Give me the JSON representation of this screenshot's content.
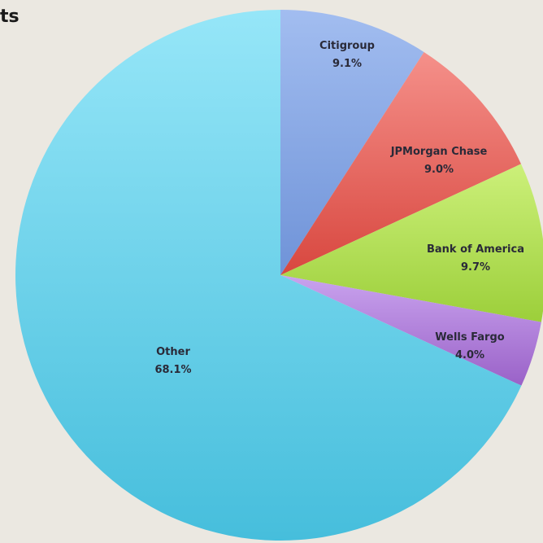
{
  "chart_data": {
    "type": "pie",
    "title": "ts",
    "slices": [
      {
        "name": "Citigroup",
        "value": 9.1,
        "label": "9.1%",
        "color": "#6f93d8",
        "color_light": "#a2bdf0"
      },
      {
        "name": "JPMorgan Chase",
        "value": 9.0,
        "label": "9.0%",
        "color": "#d8473f",
        "color_light": "#f5908a"
      },
      {
        "name": "Bank of America",
        "value": 9.7,
        "label": "9.7%",
        "color": "#9ccf3a",
        "color_light": "#ccf07a"
      },
      {
        "name": "Wells Fargo",
        "value": 4.0,
        "label": "4.0%",
        "color": "#9a62c8",
        "color_light": "#c9a3ee"
      },
      {
        "name": "Other",
        "value": 68.1,
        "label": "68.1%",
        "color": "#46bedc",
        "color_light": "#96e6f8"
      }
    ]
  }
}
